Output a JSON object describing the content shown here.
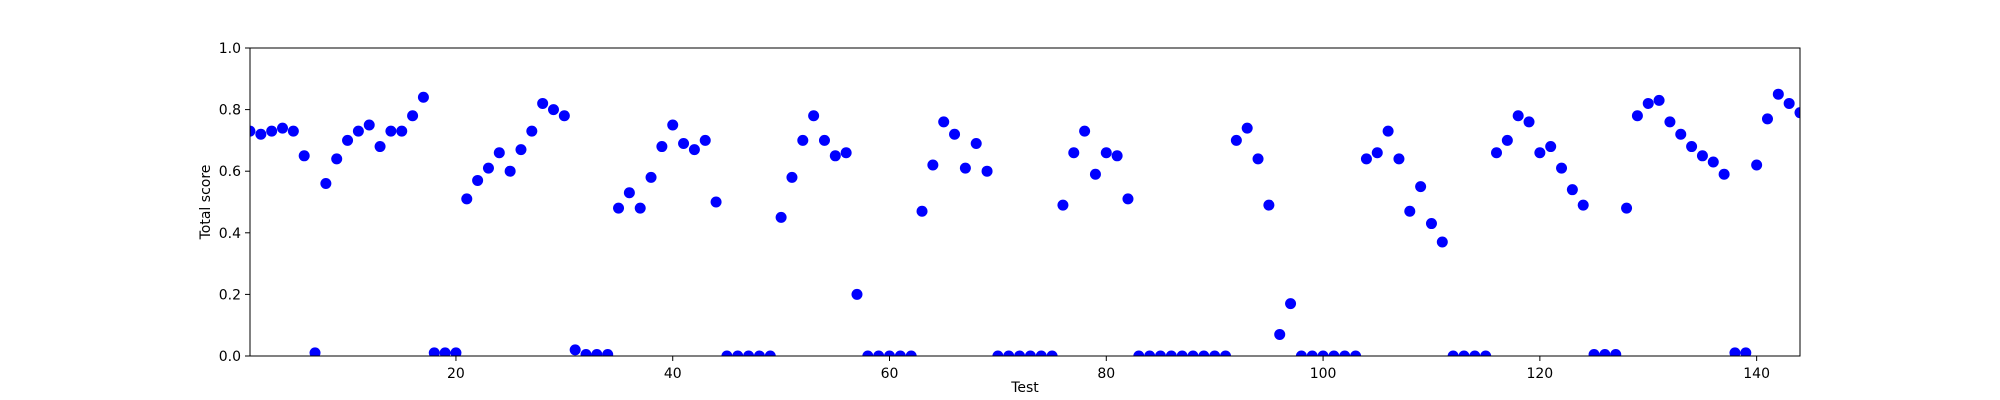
{
  "chart_data": {
    "type": "scatter",
    "xlabel": "Test",
    "ylabel": "Total score",
    "x": [
      1,
      2,
      3,
      4,
      5,
      6,
      7,
      8,
      9,
      10,
      11,
      12,
      13,
      14,
      15,
      16,
      17,
      18,
      19,
      20,
      21,
      22,
      23,
      24,
      25,
      26,
      27,
      28,
      29,
      30,
      31,
      32,
      33,
      34,
      35,
      36,
      37,
      38,
      39,
      40,
      41,
      42,
      43,
      44,
      45,
      46,
      47,
      48,
      49,
      50,
      51,
      52,
      53,
      54,
      55,
      56,
      57,
      58,
      59,
      60,
      61,
      62,
      63,
      64,
      65,
      66,
      67,
      68,
      69,
      70,
      71,
      72,
      73,
      74,
      75,
      76,
      77,
      78,
      79,
      80,
      81,
      82,
      83,
      84,
      85,
      86,
      87,
      88,
      89,
      90,
      91,
      92,
      93,
      94,
      95,
      96,
      97,
      98,
      99,
      100,
      101,
      102,
      103,
      104,
      105,
      106,
      107,
      108,
      109,
      110,
      111,
      112,
      113,
      114,
      115,
      116,
      117,
      118,
      119,
      120,
      121,
      122,
      123,
      124,
      125,
      126,
      127,
      128,
      129,
      130,
      131,
      132,
      133,
      134,
      135,
      136,
      137,
      138,
      139,
      140,
      141,
      142,
      143,
      144
    ],
    "series": [
      {
        "color": "#0000ff",
        "values": [
          0.73,
          0.72,
          0.73,
          0.74,
          0.73,
          0.65,
          0.01,
          0.56,
          0.64,
          0.7,
          0.73,
          0.75,
          0.68,
          0.73,
          0.73,
          0.78,
          0.84,
          0.01,
          0.01,
          0.01,
          0.51,
          0.57,
          0.61,
          0.66,
          0.6,
          0.67,
          0.73,
          0.82,
          0.8,
          0.78,
          0.02,
          0.005,
          0.005,
          0.005,
          0.48,
          0.53,
          0.48,
          0.58,
          0.68,
          0.75,
          0.69,
          0.67,
          0.7,
          0.5,
          0,
          0,
          0,
          0,
          0,
          0.45,
          0.58,
          0.7,
          0.78,
          0.7,
          0.65,
          0.66,
          0.2,
          0,
          0,
          0,
          0,
          0,
          0.47,
          0.62,
          0.76,
          0.72,
          0.61,
          0.69,
          0.6,
          0,
          0,
          0,
          0,
          0,
          0,
          0.49,
          0.66,
          0.73,
          0.59,
          0.66,
          0.65,
          0.51,
          0,
          0,
          0,
          0,
          0,
          0,
          0,
          0,
          0,
          0.7,
          0.74,
          0.64,
          0.49,
          0.07,
          0.17,
          0,
          0,
          0,
          0,
          0,
          0,
          0.64,
          0.66,
          0.73,
          0.64,
          0.47,
          0.55,
          0.43,
          0.37,
          0,
          0,
          0,
          0,
          0.66,
          0.7,
          0.78,
          0.76,
          0.66,
          0.68,
          0.61,
          0.54,
          0.49,
          0.005,
          0.005,
          0.005,
          0.48,
          0.78,
          0.82,
          0.83,
          0.76,
          0.72,
          0.68,
          0.65,
          0.63,
          0.59,
          0.01,
          0.01,
          0.62,
          0.77,
          0.85,
          0.82,
          0.79
        ]
      }
    ],
    "xlim": [
      1,
      144
    ],
    "xticks": [
      20,
      40,
      60,
      80,
      100,
      120,
      140
    ],
    "ylim": [
      0,
      1
    ],
    "yticks": [
      {
        "value": 0,
        "label": "0.0"
      },
      0.2,
      0.4,
      0.6,
      0.8,
      {
        "value": 1,
        "label": "1.0"
      }
    ]
  }
}
